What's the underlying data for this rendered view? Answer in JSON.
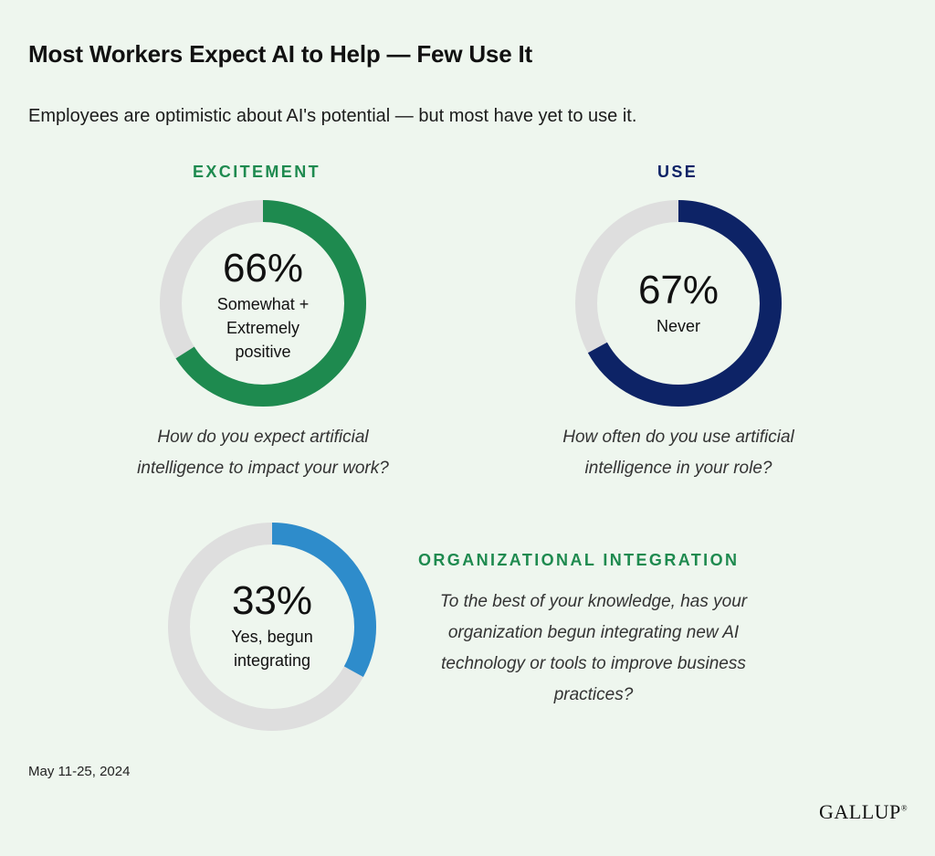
{
  "title": "Most Workers Expect AI to Help — Few Use It",
  "subtitle": "Employees are optimistic about AI's potential — but most have yet to use it.",
  "date": "May 11-25, 2024",
  "logo": "GALLUP",
  "colors": {
    "background": "#eef6ee",
    "track": "#dedede",
    "excitement": "#1e8a4f",
    "use": "#0d2366",
    "integration": "#2e8ccb"
  },
  "chart_data": [
    {
      "type": "pie",
      "section": "EXCITEMENT",
      "value": 66,
      "value_label": "66%",
      "description": "Somewhat + Extremely positive",
      "desc_lines": [
        "Somewhat +",
        "Extremely",
        "positive"
      ],
      "question": "How do you expect artificial intelligence to impact your work?",
      "question_lines": [
        "How do you expect artificial",
        "intelligence to impact your work?"
      ]
    },
    {
      "type": "pie",
      "section": "USE",
      "value": 67,
      "value_label": "67%",
      "description": "Never",
      "desc_lines": [
        "Never"
      ],
      "question": "How often do you use artificial intelligence in your role?",
      "question_lines": [
        "How often do you use artificial",
        "intelligence in your role?"
      ]
    },
    {
      "type": "pie",
      "section": "ORGANIZATIONAL INTEGRATION",
      "value": 33,
      "value_label": "33%",
      "description": "Yes, begun integrating",
      "desc_lines": [
        "Yes, begun",
        "integrating"
      ],
      "question": "To the best of your knowledge, has your organization begun integrating new AI technology or tools to improve business practices?",
      "question_lines": [
        "To the best of your knowledge, has your",
        "organization begun integrating new AI",
        "technology or tools to improve business",
        "practices?"
      ]
    }
  ]
}
